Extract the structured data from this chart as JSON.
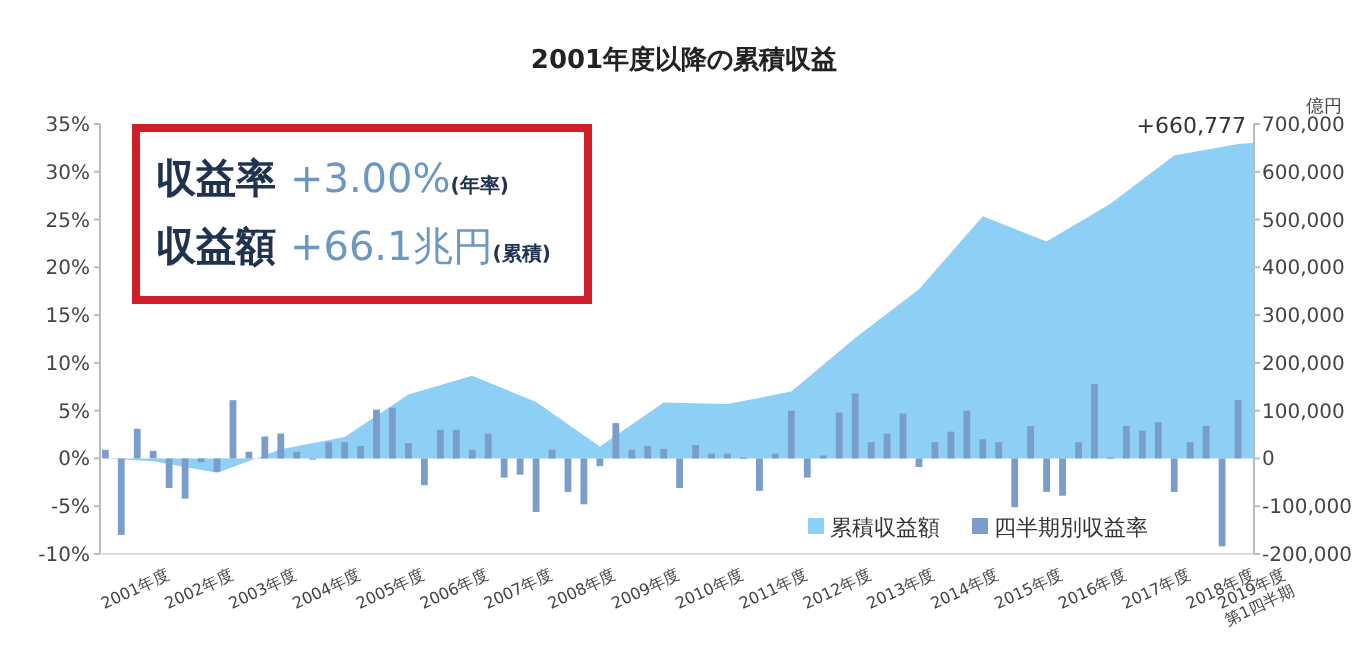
{
  "chart_data": {
    "type": "bar",
    "title": "2001年度以降の累積収益",
    "xlim": [
      "2001-05",
      "2019-06"
    ],
    "xticks": [
      {
        "value": "2001-12",
        "label": "2001年度"
      },
      {
        "value": "2002-12",
        "label": "2002年度"
      },
      {
        "value": "2003-12",
        "label": "2003年度"
      },
      {
        "value": "2004-12",
        "label": "2004年度"
      },
      {
        "value": "2005-12",
        "label": "2005年度"
      },
      {
        "value": "2006-12",
        "label": "2006年度"
      },
      {
        "value": "2007-12",
        "label": "2007年度"
      },
      {
        "value": "2008-12",
        "label": "2008年度"
      },
      {
        "value": "2009-12",
        "label": "2009年度"
      },
      {
        "value": "2010-12",
        "label": "2010年度"
      },
      {
        "value": "2011-12",
        "label": "2011年度"
      },
      {
        "value": "2012-12",
        "label": "2012年度"
      },
      {
        "value": "2013-12",
        "label": "2013年度"
      },
      {
        "value": "2014-12",
        "label": "2014年度"
      },
      {
        "value": "2015-12",
        "label": "2015年度"
      },
      {
        "value": "2016-12",
        "label": "2016年度"
      },
      {
        "value": "2017-12",
        "label": "2017年度"
      },
      {
        "value": "2018-12",
        "label": "2018年度"
      },
      {
        "value": "2019-06",
        "label": "2019年度 第1四半期"
      }
    ],
    "ylim": [
      -10,
      35
    ],
    "yticks": [
      {
        "value": -10,
        "label": "-10%"
      },
      {
        "value": -5,
        "label": "-5%"
      },
      {
        "value": 0,
        "label": "0%"
      },
      {
        "value": 5,
        "label": "5%"
      },
      {
        "value": 10,
        "label": "10%"
      },
      {
        "value": 15,
        "label": "15%"
      },
      {
        "value": 20,
        "label": "20%"
      },
      {
        "value": 25,
        "label": "25%"
      },
      {
        "value": 30,
        "label": "30%"
      },
      {
        "value": 35,
        "label": "35%"
      }
    ],
    "y2lim": [
      -200000,
      700000
    ],
    "y2ticks": [
      {
        "value": -200000,
        "label": "-200,000"
      },
      {
        "value": -100000,
        "label": "-100,000"
      },
      0,
      {
        "value": 100000,
        "label": "100,000"
      },
      {
        "value": 200000,
        "label": "200,000"
      },
      {
        "value": 300000,
        "label": "300,000"
      },
      {
        "value": 400000,
        "label": "400,000"
      },
      {
        "value": 500000,
        "label": "500,000"
      },
      {
        "value": 600000,
        "label": "600,000"
      },
      {
        "value": 700000,
        "label": "700,000"
      }
    ],
    "y2label": "億円",
    "legend": "bottom right",
    "annotations": [
      "収益率 +3.00%(年率)",
      "収益額 +66.1兆円(累積)"
    ],
    "series": [
      {
        "name": "累積収益額",
        "type": "area",
        "axis": "y2",
        "color": "#8dcff5",
        "x": [
          "2001-06",
          "2002-03",
          "2003-03",
          "2004-03",
          "2005-03",
          "2006-03",
          "2007-03",
          "2008-03",
          "2009-03",
          "2010-03",
          "2011-03",
          "2012-03",
          "2013-03",
          "2014-03",
          "2015-03",
          "2016-03",
          "2017-03",
          "2018-03",
          "2019-03",
          "2019-06"
        ],
        "values": [
          0,
          -6000,
          -30000,
          19000,
          45000,
          134000,
          173000,
          118000,
          25000,
          117000,
          114000,
          140000,
          252000,
          354000,
          507000,
          454000,
          533000,
          634000,
          658000,
          660777
        ],
        "value_labels": [
          null,
          null,
          null,
          null,
          null,
          null,
          null,
          null,
          null,
          null,
          null,
          null,
          null,
          null,
          null,
          null,
          null,
          null,
          null,
          "+660,777"
        ]
      },
      {
        "name": "四半期別収益率",
        "color": "#7b9dcb",
        "x": [
          "2001-06",
          "2001-09",
          "2001-12",
          "2002-03",
          "2002-06",
          "2002-09",
          "2002-12",
          "2003-03",
          "2003-06",
          "2003-09",
          "2003-12",
          "2004-03",
          "2004-06",
          "2004-09",
          "2004-12",
          "2005-03",
          "2005-06",
          "2005-09",
          "2005-12",
          "2006-03",
          "2006-06",
          "2006-09",
          "2006-12",
          "2007-03",
          "2007-06",
          "2007-09",
          "2007-12",
          "2008-03",
          "2008-06",
          "2008-09",
          "2008-12",
          "2009-03",
          "2009-06",
          "2009-09",
          "2009-12",
          "2010-03",
          "2010-06",
          "2010-09",
          "2010-12",
          "2011-03",
          "2011-06",
          "2011-09",
          "2011-12",
          "2012-03",
          "2012-06",
          "2012-09",
          "2012-12",
          "2013-03",
          "2013-06",
          "2013-09",
          "2013-12",
          "2014-03",
          "2014-06",
          "2014-09",
          "2014-12",
          "2015-03",
          "2015-06",
          "2015-09",
          "2015-12",
          "2016-03",
          "2016-06",
          "2016-09",
          "2016-12",
          "2017-03",
          "2017-06",
          "2017-09",
          "2017-12",
          "2018-03",
          "2018-06",
          "2018-09",
          "2018-12",
          "2019-03"
        ],
        "values": [
          0.9,
          -8.0,
          3.1,
          0.8,
          -3.1,
          -4.2,
          -0.4,
          -1.4,
          6.1,
          0.7,
          2.3,
          2.6,
          0.7,
          -0.1,
          1.7,
          1.7,
          1.3,
          5.1,
          5.3,
          1.6,
          -2.8,
          3.0,
          3.0,
          0.9,
          2.6,
          -2.0,
          -1.7,
          -5.6,
          0.9,
          -3.5,
          -4.8,
          -0.8,
          3.7,
          0.9,
          1.3,
          1.0,
          -3.1,
          1.4,
          0.5,
          0.5,
          0.1,
          -3.4,
          0.5,
          5.0,
          -2.0,
          0.3,
          4.8,
          6.8,
          1.7,
          2.6,
          4.7,
          -0.9,
          1.7,
          2.8,
          5.0,
          2.0,
          1.7,
          -5.1,
          3.4,
          -3.5,
          -3.9,
          1.7,
          7.8,
          0.1,
          3.4,
          2.9,
          3.8,
          -3.5,
          1.7,
          3.4,
          -9.2,
          6.1
        ]
      }
    ]
  }
}
